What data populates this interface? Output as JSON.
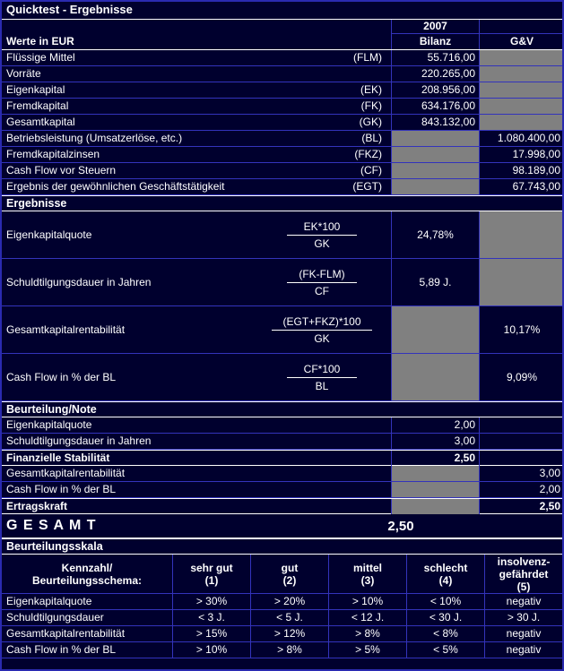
{
  "colors": {
    "background": "#00002e",
    "gridline": "#3333bb",
    "blocked_cell": "#808080",
    "section_line": "#ffffff",
    "text": "#ffffff"
  },
  "title": "Quicktest - Ergebnisse",
  "header": {
    "year": "2007",
    "werte": "Werte in EUR",
    "bilanz": "Bilanz",
    "guv": "G&V"
  },
  "werte": {
    "rows": [
      {
        "label": "Flüssige Mittel",
        "code": "(FLM)",
        "bilanz": "55.716,00",
        "guv": ""
      },
      {
        "label": "Vorräte",
        "code": "",
        "bilanz": "220.265,00",
        "guv": ""
      },
      {
        "label": "Eigenkapital",
        "code": "(EK)",
        "bilanz": "208.956,00",
        "guv": ""
      },
      {
        "label": "Fremdkapital",
        "code": "(FK)",
        "bilanz": "634.176,00",
        "guv": ""
      },
      {
        "label": "Gesamtkapital",
        "code": "(GK)",
        "bilanz": "843.132,00",
        "guv": ""
      },
      {
        "label": "Betriebsleistung (Umsatzerlöse, etc.)",
        "code": "(BL)",
        "bilanz": "",
        "guv": "1.080.400,00"
      },
      {
        "label": "Fremdkapitalzinsen",
        "code": "(FKZ)",
        "bilanz": "",
        "guv": "17.998,00"
      },
      {
        "label": "Cash Flow vor Steuern",
        "code": "(CF)",
        "bilanz": "",
        "guv": "98.189,00"
      },
      {
        "label": "Ergebnis der gewöhnlichen Geschäftstätigkeit",
        "code": "(EGT)",
        "bilanz": "",
        "guv": "67.743,00"
      }
    ]
  },
  "ergebnisse": {
    "section_title": "Ergebnisse",
    "rows": [
      {
        "label": "Eigenkapitalquote",
        "numerator": "EK*100",
        "denominator": "GK",
        "bilanz": "24,78%",
        "guv": ""
      },
      {
        "label": "Schuldtilgungsdauer in Jahren",
        "numerator": "(FK-FLM)",
        "denominator": "CF",
        "bilanz": "5,89 J.",
        "guv": ""
      },
      {
        "label": "Gesamtkapitalrentabilität",
        "numerator": "(EGT+FKZ)*100",
        "denominator": "GK",
        "bilanz": "",
        "guv": "10,17%"
      },
      {
        "label": "Cash Flow in % der BL",
        "numerator": "CF*100",
        "denominator": "BL",
        "bilanz": "",
        "guv": "9,09%"
      }
    ]
  },
  "beurteilung": {
    "section_title": "Beurteilung/Note",
    "rows": [
      {
        "label": "Eigenkapitalquote",
        "bilanz": "2,00",
        "guv": ""
      },
      {
        "label": "Schuldtilgungsdauer in Jahren",
        "bilanz": "3,00",
        "guv": ""
      },
      {
        "label": "Finanzielle Stabilität",
        "bilanz": "2,50",
        "guv": ""
      },
      {
        "label": "Gesamtkapitalrentabilität",
        "bilanz": "",
        "guv": "3,00"
      },
      {
        "label": "Cash Flow in % der BL",
        "bilanz": "",
        "guv": "2,00"
      },
      {
        "label": "Ertragskraft",
        "bilanz": "",
        "guv": "2,50"
      }
    ],
    "gesamt_label": "G E S A M T",
    "gesamt_value": "2,50"
  },
  "skala": {
    "section_title": "Beurteilungsskala",
    "header_label_line1": "Kennzahl/",
    "header_label_line2": "Beurteilungsschema:",
    "columns": [
      {
        "l1": "sehr gut",
        "l2": "(1)"
      },
      {
        "l1": "gut",
        "l2": "(2)"
      },
      {
        "l1": "mittel",
        "l2": "(3)"
      },
      {
        "l1": "schlecht",
        "l2": "(4)"
      },
      {
        "l1": "insolvenz-",
        "l2": "gefährdet",
        "l3": "(5)"
      }
    ],
    "rows": [
      {
        "label": "Eigenkapitalquote",
        "values": [
          "> 30%",
          "> 20%",
          "> 10%",
          "< 10%",
          "negativ"
        ]
      },
      {
        "label": "Schuldtilgungsdauer",
        "values": [
          "< 3 J.",
          "< 5 J.",
          "< 12 J.",
          "< 30 J.",
          "> 30 J."
        ]
      },
      {
        "label": "Gesamtkapitalrentabilität",
        "values": [
          "> 15%",
          "> 12%",
          "> 8%",
          "< 8%",
          "negativ"
        ]
      },
      {
        "label": "Cash Flow in % der BL",
        "values": [
          "> 10%",
          "> 8%",
          "> 5%",
          "< 5%",
          "negativ"
        ]
      }
    ]
  }
}
